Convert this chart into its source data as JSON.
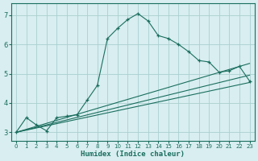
{
  "xlabel": "Humidex (Indice chaleur)",
  "background_color": "#d8eef0",
  "grid_color": "#aacfcf",
  "line_color": "#1a6e5e",
  "xlim": [
    -0.5,
    23.5
  ],
  "ylim": [
    2.7,
    7.4
  ],
  "xticks": [
    0,
    1,
    2,
    3,
    4,
    5,
    6,
    7,
    8,
    9,
    10,
    11,
    12,
    13,
    14,
    15,
    16,
    17,
    18,
    19,
    20,
    21,
    22,
    23
  ],
  "yticks": [
    3,
    4,
    5,
    6,
    7
  ],
  "curve_x": [
    0,
    1,
    2,
    3,
    4,
    5,
    6,
    7,
    8,
    9,
    10,
    11,
    12,
    13,
    14,
    15,
    16,
    17,
    18,
    19,
    20,
    21,
    22,
    23
  ],
  "curve_y": [
    3.0,
    3.5,
    3.25,
    3.05,
    3.5,
    3.55,
    3.6,
    4.1,
    4.6,
    6.2,
    6.55,
    6.85,
    7.05,
    6.8,
    6.3,
    6.2,
    6.0,
    5.75,
    5.45,
    5.4,
    5.05,
    5.1,
    5.25,
    4.75
  ],
  "line1_x": [
    0,
    23
  ],
  "line1_y": [
    3.0,
    4.7
  ],
  "line2_x": [
    0,
    23
  ],
  "line2_y": [
    3.0,
    5.35
  ],
  "line3_x": [
    0,
    23
  ],
  "line3_y": [
    3.0,
    4.95
  ]
}
